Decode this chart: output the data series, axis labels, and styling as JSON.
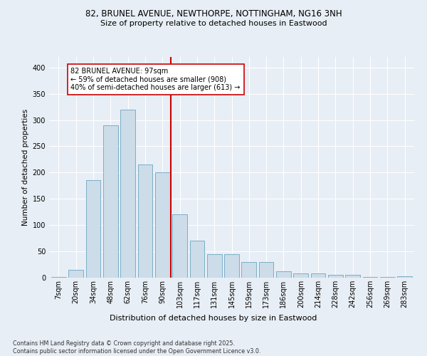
{
  "title_line1": "82, BRUNEL AVENUE, NEWTHORPE, NOTTINGHAM, NG16 3NH",
  "title_line2": "Size of property relative to detached houses in Eastwood",
  "xlabel": "Distribution of detached houses by size in Eastwood",
  "ylabel": "Number of detached properties",
  "footnote": "Contains HM Land Registry data © Crown copyright and database right 2025.\nContains public sector information licensed under the Open Government Licence v3.0.",
  "annotation_line1": "82 BRUNEL AVENUE: 97sqm",
  "annotation_line2": "← 59% of detached houses are smaller (908)",
  "annotation_line3": "40% of semi-detached houses are larger (613) →",
  "bar_categories": [
    "7sqm",
    "20sqm",
    "34sqm",
    "48sqm",
    "62sqm",
    "76sqm",
    "90sqm",
    "103sqm",
    "117sqm",
    "131sqm",
    "145sqm",
    "159sqm",
    "173sqm",
    "186sqm",
    "200sqm",
    "214sqm",
    "228sqm",
    "242sqm",
    "256sqm",
    "269sqm",
    "283sqm"
  ],
  "bar_values": [
    2,
    15,
    185,
    290,
    320,
    215,
    200,
    120,
    70,
    45,
    45,
    30,
    30,
    12,
    8,
    8,
    5,
    5,
    2,
    2,
    3
  ],
  "bar_color": "#ccdce8",
  "bar_edge_color": "#7aafc8",
  "vline_color": "#cc0000",
  "vline_x": 6.5,
  "ylim": [
    0,
    420
  ],
  "yticks": [
    0,
    50,
    100,
    150,
    200,
    250,
    300,
    350,
    400
  ],
  "bg_color": "#e8eef5",
  "plot_bg_color": "#e8eef5",
  "grid_color": "#ffffff",
  "annotation_box_facecolor": "#ffffff",
  "annotation_box_edgecolor": "#cc0000",
  "title_fontsize": 8.5,
  "subtitle_fontsize": 8.0,
  "ylabel_fontsize": 7.5,
  "xlabel_fontsize": 8.0,
  "tick_fontsize": 7.0,
  "annotation_fontsize": 7.0,
  "footnote_fontsize": 5.8
}
